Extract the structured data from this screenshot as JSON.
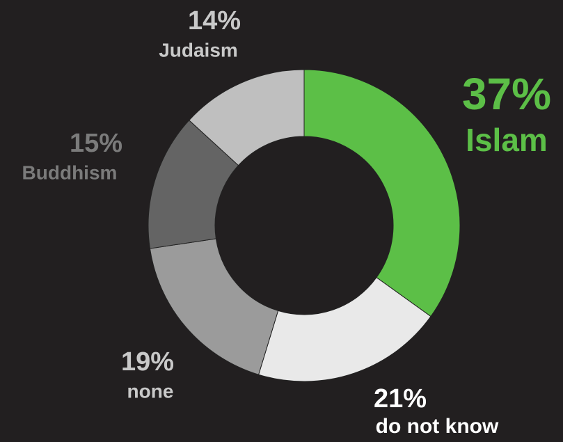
{
  "chart_data": {
    "type": "donut",
    "categories": [
      "Islam",
      "do not know",
      "none",
      "Buddhism",
      "Judaism"
    ],
    "values": [
      37,
      21,
      19,
      15,
      14
    ],
    "value_labels": [
      "37%",
      "21%",
      "19%",
      "15%",
      "14%"
    ],
    "colors": [
      "#5cbf47",
      "#e9e9e9",
      "#9b9b9b",
      "#646464",
      "#bfbfbf"
    ]
  }
}
